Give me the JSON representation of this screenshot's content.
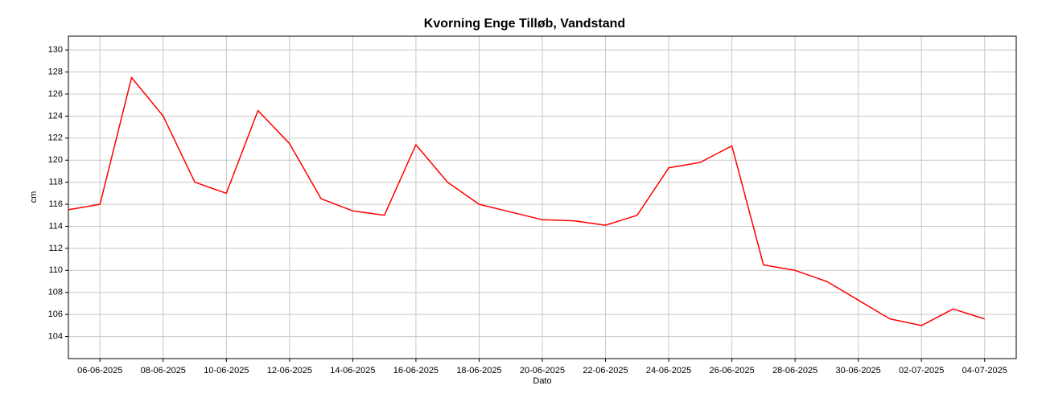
{
  "chart_data": {
    "type": "line",
    "title": "Kvorning Enge Tilløb, Vandstand",
    "xlabel": "Dato",
    "ylabel": "cm",
    "color": "#ff0000",
    "grid": true,
    "x": [
      "2025-06-05",
      "2025-06-06",
      "2025-06-07",
      "2025-06-08",
      "2025-06-09",
      "2025-06-10",
      "2025-06-11",
      "2025-06-12",
      "2025-06-13",
      "2025-06-14",
      "2025-06-15",
      "2025-06-16",
      "2025-06-17",
      "2025-06-18",
      "2025-06-19",
      "2025-06-20",
      "2025-06-21",
      "2025-06-22",
      "2025-06-23",
      "2025-06-24",
      "2025-06-25",
      "2025-06-26",
      "2025-06-27",
      "2025-06-28",
      "2025-06-29",
      "2025-06-30",
      "2025-07-01",
      "2025-07-02",
      "2025-07-03",
      "2025-07-04"
    ],
    "values": [
      115.5,
      116,
      127.5,
      124,
      118,
      117,
      124.5,
      121.5,
      116.5,
      115.4,
      115,
      121.4,
      118,
      116,
      115.3,
      114.6,
      114.5,
      114.1,
      115,
      119.3,
      119.8,
      121.3,
      110.5,
      110,
      109,
      107.3,
      105.6,
      105,
      106.5,
      105.6
    ],
    "xlim": [
      "2025-06-05",
      "2025-07-05"
    ],
    "xticks": [
      {
        "value": "2025-06-06",
        "label": "06-06-2025"
      },
      {
        "value": "2025-06-08",
        "label": "08-06-2025"
      },
      {
        "value": "2025-06-10",
        "label": "10-06-2025"
      },
      {
        "value": "2025-06-12",
        "label": "12-06-2025"
      },
      {
        "value": "2025-06-14",
        "label": "14-06-2025"
      },
      {
        "value": "2025-06-16",
        "label": "16-06-2025"
      },
      {
        "value": "2025-06-18",
        "label": "18-06-2025"
      },
      {
        "value": "2025-06-20",
        "label": "20-06-2025"
      },
      {
        "value": "2025-06-22",
        "label": "22-06-2025"
      },
      {
        "value": "2025-06-24",
        "label": "24-06-2025"
      },
      {
        "value": "2025-06-26",
        "label": "26-06-2025"
      },
      {
        "value": "2025-06-28",
        "label": "28-06-2025"
      },
      {
        "value": "2025-06-30",
        "label": "30-06-2025"
      },
      {
        "value": "2025-07-02",
        "label": "02-07-2025"
      },
      {
        "value": "2025-07-04",
        "label": "04-07-2025"
      }
    ],
    "ylim": [
      102.0,
      131.25
    ],
    "yticks": [
      104,
      106,
      108,
      110,
      112,
      114,
      116,
      118,
      120,
      122,
      124,
      126,
      128,
      130
    ]
  }
}
